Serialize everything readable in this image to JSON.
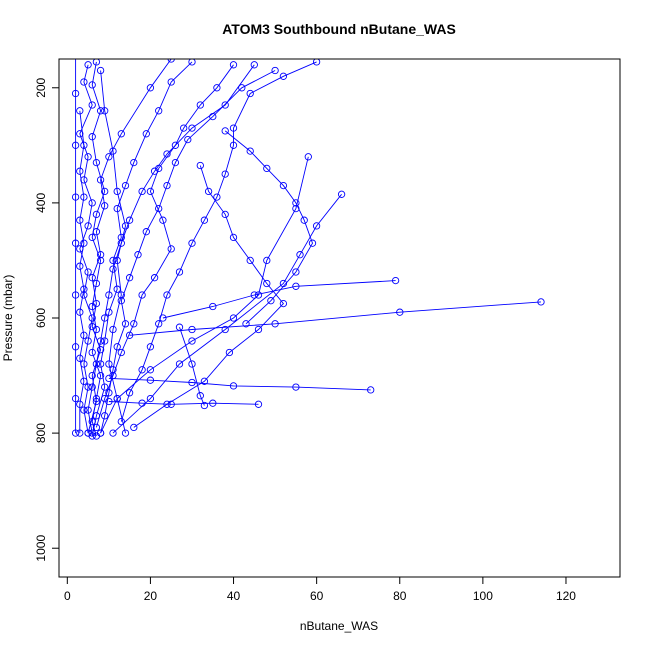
{
  "chart_data": {
    "type": "scatter",
    "title": "ATOM3 Southbound nButane_WAS",
    "xlabel": "nButane_WAS",
    "ylabel": "Pressure (mbar)",
    "xlim": [
      -2,
      133
    ],
    "ylim": [
      1050,
      150
    ],
    "y_reversed": true,
    "grid": false,
    "x_ticks": [
      0,
      20,
      40,
      60,
      80,
      100,
      120
    ],
    "y_ticks": [
      200,
      400,
      600,
      800,
      1000
    ],
    "series_color": "#0000ff",
    "marker": "open-circle",
    "profiles": [
      [
        [
          5,
          160
        ],
        [
          4,
          190
        ],
        [
          6,
          230
        ],
        [
          3,
          280
        ],
        [
          5,
          320
        ],
        [
          4,
          360
        ],
        [
          6,
          400
        ],
        [
          5,
          440
        ],
        [
          3,
          480
        ],
        [
          5,
          520
        ],
        [
          4,
          560
        ],
        [
          6,
          600
        ],
        [
          5,
          640
        ],
        [
          4,
          680
        ],
        [
          5,
          720
        ],
        [
          4,
          760
        ],
        [
          5,
          800
        ]
      ],
      [
        [
          7,
          155
        ],
        [
          6,
          195
        ],
        [
          8,
          240
        ],
        [
          6,
          285
        ],
        [
          7,
          330
        ],
        [
          9,
          380
        ],
        [
          7,
          420
        ],
        [
          6,
          460
        ],
        [
          8,
          500
        ],
        [
          7,
          540
        ],
        [
          6,
          580
        ],
        [
          7,
          620
        ],
        [
          6,
          660
        ],
        [
          8,
          700
        ],
        [
          7,
          740
        ],
        [
          6,
          780
        ],
        [
          7,
          805
        ]
      ],
      [
        [
          3,
          240
        ],
        [
          4,
          300
        ],
        [
          3,
          345
        ],
        [
          4,
          390
        ],
        [
          3,
          430
        ],
        [
          4,
          470
        ],
        [
          3,
          510
        ],
        [
          4,
          550
        ],
        [
          3,
          590
        ],
        [
          4,
          630
        ],
        [
          3,
          670
        ],
        [
          4,
          710
        ],
        [
          3,
          750
        ],
        [
          3,
          800
        ]
      ],
      [
        [
          25,
          150
        ],
        [
          20,
          200
        ],
        [
          13,
          280
        ],
        [
          10,
          320
        ],
        [
          8,
          360
        ],
        [
          9,
          405
        ],
        [
          7,
          450
        ],
        [
          8,
          490
        ],
        [
          6,
          530
        ],
        [
          7,
          575
        ],
        [
          6,
          615
        ],
        [
          8,
          655
        ],
        [
          6,
          700
        ],
        [
          7,
          745
        ],
        [
          5,
          800
        ]
      ],
      [
        [
          45,
          160
        ],
        [
          38,
          230
        ],
        [
          30,
          270
        ],
        [
          24,
          315
        ],
        [
          21,
          345
        ],
        [
          18,
          380
        ],
        [
          15,
          430
        ],
        [
          13,
          470
        ],
        [
          11,
          515
        ],
        [
          10,
          560
        ],
        [
          9,
          600
        ],
        [
          8,
          640
        ],
        [
          7,
          680
        ],
        [
          6,
          720
        ],
        [
          5,
          760
        ],
        [
          6,
          800
        ]
      ],
      [
        [
          58,
          320
        ],
        [
          55,
          410
        ],
        [
          48,
          500
        ],
        [
          46,
          560
        ],
        [
          40,
          600
        ],
        [
          30,
          640
        ],
        [
          20,
          690
        ],
        [
          12,
          740
        ],
        [
          8,
          800
        ]
      ],
      [
        [
          66,
          385
        ],
        [
          60,
          440
        ],
        [
          56,
          490
        ],
        [
          52,
          540
        ],
        [
          38,
          620
        ],
        [
          27,
          680
        ],
        [
          20,
          740
        ],
        [
          11,
          800
        ]
      ],
      [
        [
          114,
          572
        ],
        [
          80,
          590
        ],
        [
          50,
          610
        ],
        [
          30,
          620
        ],
        [
          15,
          630
        ]
      ],
      [
        [
          79,
          535
        ],
        [
          55,
          545
        ],
        [
          45,
          560
        ],
        [
          35,
          580
        ],
        [
          23,
          600
        ]
      ],
      [
        [
          73,
          725
        ],
        [
          55,
          720
        ],
        [
          40,
          718
        ],
        [
          30,
          712
        ],
        [
          20,
          708
        ],
        [
          10,
          705
        ]
      ],
      [
        [
          46,
          750
        ],
        [
          35,
          748
        ],
        [
          25,
          750
        ],
        [
          18,
          748
        ],
        [
          10,
          745
        ]
      ],
      [
        [
          32,
          335
        ],
        [
          34,
          380
        ],
        [
          38,
          420
        ],
        [
          40,
          460
        ],
        [
          44,
          500
        ],
        [
          48,
          540
        ],
        [
          52,
          575
        ],
        [
          46,
          620
        ],
        [
          39,
          660
        ],
        [
          33,
          710
        ],
        [
          24,
          750
        ],
        [
          16,
          790
        ]
      ],
      [
        [
          40,
          160
        ],
        [
          36,
          200
        ],
        [
          32,
          230
        ],
        [
          28,
          270
        ],
        [
          26,
          300
        ],
        [
          22,
          340
        ],
        [
          20,
          380
        ],
        [
          23,
          430
        ],
        [
          25,
          480
        ],
        [
          21,
          530
        ],
        [
          18,
          560
        ],
        [
          16,
          610
        ],
        [
          13,
          660
        ],
        [
          11,
          700
        ],
        [
          9,
          740
        ],
        [
          7,
          790
        ]
      ],
      [
        [
          60,
          155
        ],
        [
          52,
          180
        ],
        [
          44,
          210
        ],
        [
          40,
          270
        ],
        [
          40,
          300
        ],
        [
          38,
          350
        ],
        [
          36,
          390
        ],
        [
          33,
          430
        ],
        [
          30,
          470
        ],
        [
          27,
          520
        ],
        [
          24,
          560
        ],
        [
          22,
          610
        ],
        [
          20,
          650
        ],
        [
          18,
          690
        ],
        [
          15,
          730
        ],
        [
          13,
          780
        ]
      ],
      [
        [
          30,
          155
        ],
        [
          25,
          190
        ],
        [
          22,
          240
        ],
        [
          19,
          280
        ],
        [
          16,
          330
        ],
        [
          14,
          370
        ],
        [
          12,
          410
        ],
        [
          13,
          460
        ],
        [
          11,
          500
        ],
        [
          12,
          550
        ],
        [
          10,
          590
        ],
        [
          9,
          640
        ],
        [
          8,
          680
        ],
        [
          9,
          720
        ],
        [
          7,
          770
        ],
        [
          6,
          805
        ]
      ],
      [
        [
          50,
          170
        ],
        [
          42,
          200
        ],
        [
          35,
          250
        ],
        [
          29,
          290
        ],
        [
          26,
          330
        ],
        [
          24,
          370
        ],
        [
          22,
          410
        ],
        [
          19,
          450
        ],
        [
          17,
          490
        ],
        [
          15,
          530
        ],
        [
          13,
          570
        ],
        [
          14,
          610
        ],
        [
          12,
          650
        ],
        [
          11,
          690
        ],
        [
          10,
          730
        ],
        [
          9,
          770
        ],
        [
          8,
          800
        ]
      ],
      [
        [
          27,
          616
        ],
        [
          30,
          680
        ],
        [
          32,
          735
        ],
        [
          33,
          752
        ]
      ],
      [
        [
          38,
          275
        ],
        [
          44,
          310
        ],
        [
          48,
          340
        ],
        [
          52,
          370
        ],
        [
          55,
          400
        ],
        [
          57,
          430
        ],
        [
          59,
          470
        ],
        [
          55,
          520
        ],
        [
          49,
          570
        ],
        [
          43,
          610
        ]
      ],
      [
        [
          2,
          140
        ],
        [
          2,
          210
        ],
        [
          2,
          300
        ],
        [
          2,
          390
        ],
        [
          2,
          470
        ],
        [
          2,
          560
        ],
        [
          2,
          650
        ],
        [
          2,
          740
        ],
        [
          2,
          800
        ]
      ],
      [
        [
          8,
          170
        ],
        [
          9,
          240
        ],
        [
          11,
          310
        ],
        [
          12,
          380
        ],
        [
          14,
          440
        ],
        [
          12,
          500
        ],
        [
          13,
          560
        ],
        [
          11,
          620
        ],
        [
          10,
          680
        ],
        [
          12,
          740
        ],
        [
          14,
          800
        ]
      ]
    ]
  }
}
